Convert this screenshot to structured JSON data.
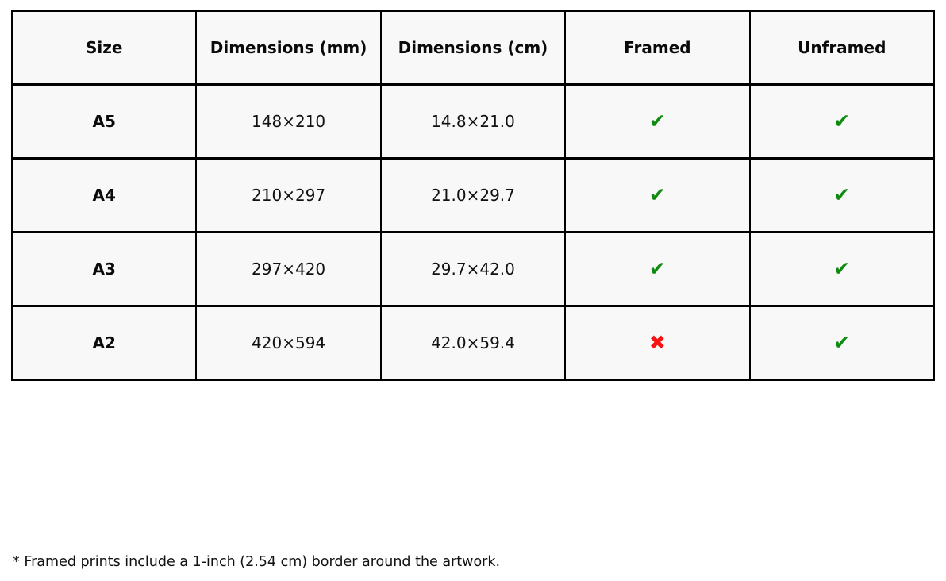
{
  "table": {
    "headers": {
      "size": "Size",
      "mm": "Dimensions (mm)",
      "cm": "Dimensions (cm)",
      "framed": "Framed",
      "unframed": "Unframed"
    },
    "rows": [
      {
        "size": "A5",
        "mm": "148×210",
        "cm": "14.8×21.0",
        "framed": "yes",
        "unframed": "yes"
      },
      {
        "size": "A4",
        "mm": "210×297",
        "cm": "21.0×29.7",
        "framed": "yes",
        "unframed": "yes"
      },
      {
        "size": "A3",
        "mm": "297×420",
        "cm": "29.7×42.0",
        "framed": "yes",
        "unframed": "yes"
      },
      {
        "size": "A2",
        "mm": "420×594",
        "cm": "42.0×59.4",
        "framed": "no",
        "unframed": "yes"
      }
    ],
    "icons": {
      "check": "✔",
      "cross": "✖"
    },
    "colors": {
      "check_green": "#0f8b0f",
      "cross_red": "#f81414",
      "cell_background": "#f8f8f8",
      "border": "#000000"
    }
  },
  "footnote": {
    "text": "* Framed prints include a 1-inch (2.54 cm) border around the artwork."
  }
}
